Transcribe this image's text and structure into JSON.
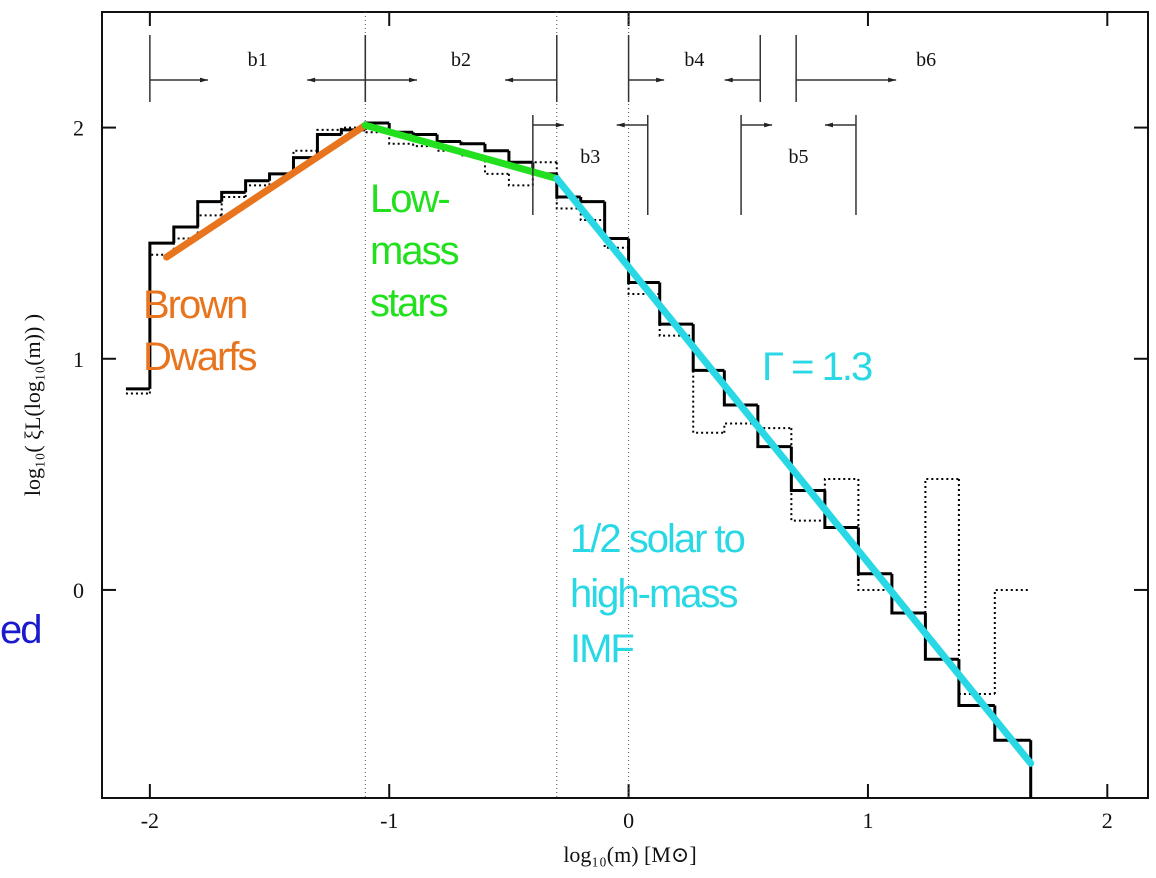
{
  "chart_data": {
    "type": "histogram",
    "xlabel": "log₁₀(m)  [M⊙]",
    "ylabel": "log₁₀( ξL(log₁₀(m)) )",
    "xlim": [
      -2.2,
      2.17
    ],
    "ylim": [
      -0.9,
      2.5
    ],
    "xticks": [
      -2,
      -1,
      0,
      1,
      2
    ],
    "yticks": [
      0,
      1,
      2
    ],
    "bins": [
      -2.1,
      -2.0,
      -1.9,
      -1.8,
      -1.7,
      -1.6,
      -1.5,
      -1.4,
      -1.3,
      -1.2,
      -1.1,
      -1.0,
      -0.9,
      -0.8,
      -0.7,
      -0.6,
      -0.5,
      -0.4,
      -0.3,
      -0.2,
      -0.1,
      0.0,
      0.13,
      0.27,
      0.4,
      0.54,
      0.68,
      0.82,
      0.96,
      1.1,
      1.24,
      1.38,
      1.53,
      1.68
    ],
    "series": [
      {
        "color": "#000000",
        "style": "solid",
        "values": [
          0.87,
          1.5,
          1.57,
          1.68,
          1.72,
          1.77,
          1.8,
          1.87,
          1.97,
          1.99,
          2.02,
          1.98,
          1.97,
          1.94,
          1.93,
          1.9,
          1.85,
          1.8,
          1.7,
          1.68,
          1.52,
          1.33,
          1.15,
          0.95,
          0.8,
          0.62,
          0.43,
          0.27,
          0.07,
          -0.1,
          -0.3,
          -0.5,
          -0.65
        ]
      },
      {
        "color": "#000000",
        "style": "dotted",
        "values": [
          0.85,
          1.45,
          1.52,
          1.62,
          1.7,
          1.75,
          1.8,
          1.9,
          1.99,
          2.0,
          1.98,
          1.93,
          1.92,
          1.9,
          1.88,
          1.8,
          1.75,
          1.85,
          1.65,
          1.6,
          1.48,
          1.28,
          1.1,
          0.68,
          0.72,
          0.7,
          0.3,
          0.48,
          0.0,
          -0.1,
          0.48,
          -0.45,
          0.0
        ]
      }
    ],
    "fits": [
      {
        "color": "#e8741e",
        "x": [
          -1.93,
          -1.1
        ],
        "values": [
          1.44,
          2.01
        ]
      },
      {
        "color": "#22e01e",
        "x": [
          -1.1,
          -0.3
        ],
        "values": [
          2.01,
          1.78
        ]
      },
      {
        "color": "#28d8e4",
        "x": [
          -0.3,
          1.68
        ],
        "values": [
          1.78,
          -0.75
        ]
      }
    ],
    "vlines": [
      -1.1,
      -0.3,
      0
    ],
    "ranges": [
      {
        "label": "b1",
        "from": -2,
        "to": -1.1
      },
      {
        "label": "b2",
        "from": -1.1,
        "to": -0.3
      },
      {
        "label": "b3",
        "from": -0.4,
        "to": 0.08
      },
      {
        "label": "b4",
        "from": 0,
        "to": 0.55
      },
      {
        "label": "b5",
        "from": 0.47,
        "to": 0.95
      },
      {
        "label": "b6",
        "from": 0.7
      }
    ],
    "annotations": [
      {
        "lines": [
          "Brown",
          "Dwarfs"
        ],
        "color": "#e8741e"
      },
      {
        "lines": [
          "Low-",
          "mass",
          "stars"
        ],
        "color": "#22e01e"
      },
      {
        "lines": [
          "1/2 solar to",
          "high-mass",
          "IMF"
        ],
        "color": "#28d8e4"
      },
      {
        "lines": [
          "Γ = 1.3"
        ],
        "color": "#28d8e4"
      },
      {
        "lines": [
          "ed"
        ],
        "color": "#1a1acc"
      }
    ]
  }
}
